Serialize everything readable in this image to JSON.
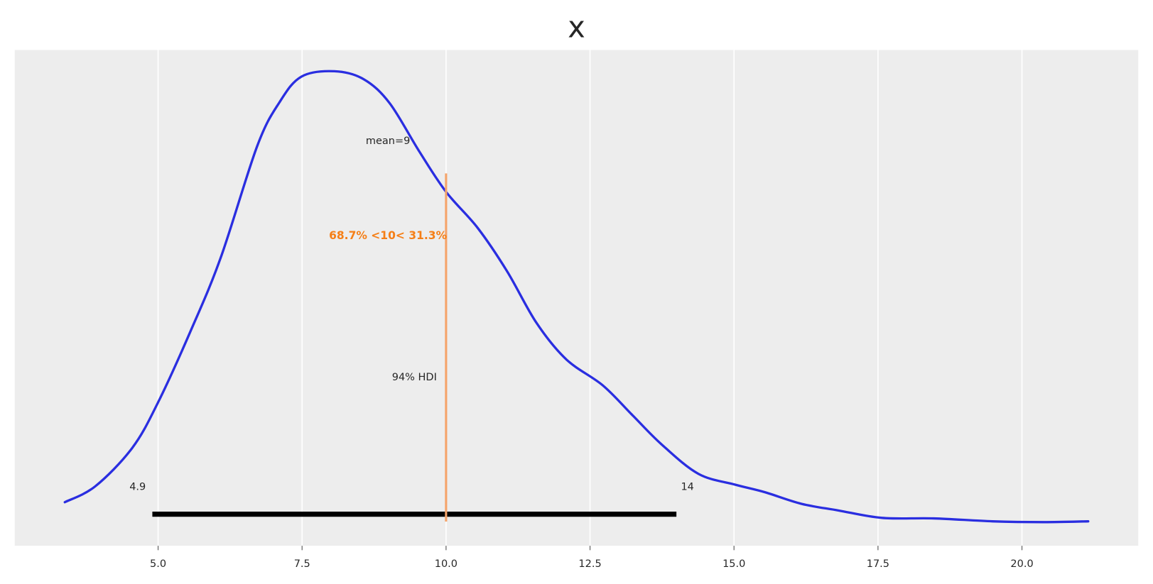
{
  "chart_data": {
    "type": "density",
    "title": "x",
    "color": "#2a2ee0",
    "x": [
      3.38,
      3.91,
      4.55,
      5.0,
      5.57,
      6.09,
      6.72,
      7.11,
      7.49,
      8.06,
      8.57,
      9.02,
      9.53,
      10.0,
      10.55,
      11.06,
      11.57,
      12.09,
      12.72,
      13.23,
      13.74,
      14.38,
      15.02,
      15.53,
      16.17,
      16.81,
      17.57,
      18.47,
      19.49,
      20.38,
      21.15
    ],
    "values": [
      0.0078,
      0.0138,
      0.0282,
      0.0454,
      0.0725,
      0.1,
      0.1418,
      0.1584,
      0.168,
      0.17,
      0.167,
      0.158,
      0.14,
      0.1246,
      0.111,
      0.0947,
      0.0753,
      0.0615,
      0.0518,
      0.0407,
      0.0296,
      0.0185,
      0.0144,
      0.0116,
      0.0072,
      0.0047,
      0.0019,
      0.0017,
      0.0006,
      0.0003,
      0.0006
    ],
    "xlim": [
      2.51,
      22.02
    ],
    "ylim": [
      -0.0086,
      0.178
    ],
    "xticks": [
      {
        "value": 5,
        "label": "5.0"
      },
      7.5,
      {
        "value": 10,
        "label": "10.0"
      },
      12.5,
      {
        "value": 15,
        "label": "15.0"
      },
      17.5,
      {
        "value": 20,
        "label": "20.0"
      }
    ],
    "grid": true,
    "mean_label": "mean=9",
    "hdi": {
      "label": "94% HDI",
      "low": 4.9,
      "high": 14,
      "color": "#000000"
    },
    "ref_val": 10,
    "ref_label": "68.7% <10< 31.3%",
    "ref_color": "#f5a46a",
    "ref_label_color": "#f57f17"
  }
}
